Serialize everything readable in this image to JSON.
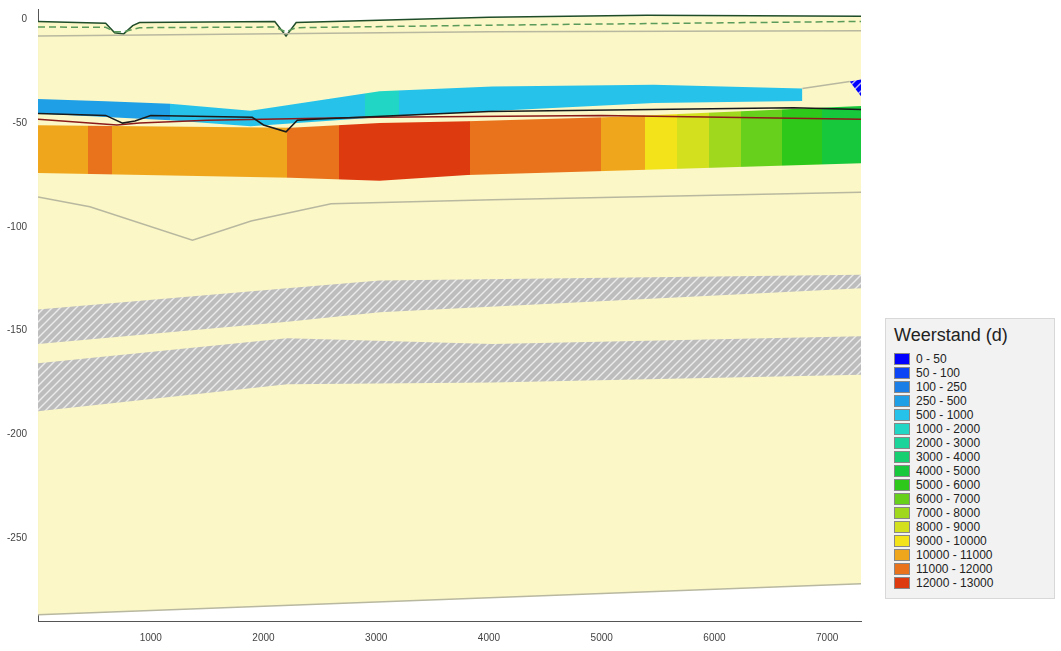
{
  "chart_data": {
    "type": "cross_section",
    "xlim": [
      0,
      7300
    ],
    "xticks": [
      1000,
      2000,
      3000,
      4000,
      5000,
      6000,
      7000
    ],
    "ylim": [
      -290,
      5
    ],
    "yticks": [
      -250,
      -200,
      -150,
      -100,
      -50,
      0
    ],
    "grid": false,
    "legend": "right",
    "legend_title": "Weerstand (d)",
    "legend_classes": [
      {
        "label": "0 - 50",
        "color": "#0000ff"
      },
      {
        "label": "50 - 100",
        "color": "#0a44f5"
      },
      {
        "label": "100 - 250",
        "color": "#1a7ee6"
      },
      {
        "label": "250 - 500",
        "color": "#1fa0e6"
      },
      {
        "label": "500 - 1000",
        "color": "#26c2ea"
      },
      {
        "label": "1000 - 2000",
        "color": "#22d6c6"
      },
      {
        "label": "2000 - 3000",
        "color": "#1ad49a"
      },
      {
        "label": "3000 - 4000",
        "color": "#16cf70"
      },
      {
        "label": "4000 - 5000",
        "color": "#18c83c"
      },
      {
        "label": "5000 - 6000",
        "color": "#2ec81a"
      },
      {
        "label": "6000 - 7000",
        "color": "#66d01c"
      },
      {
        "label": "7000 - 8000",
        "color": "#a0d81e"
      },
      {
        "label": "8000 - 9000",
        "color": "#d2e01e"
      },
      {
        "label": "9000 - 10000",
        "color": "#f2e31a"
      },
      {
        "label": "10000 - 11000",
        "color": "#f0a61c"
      },
      {
        "label": "11000 - 12000",
        "color": "#e8731c"
      },
      {
        "label": "12000 - 13000",
        "color": "#de3a10"
      }
    ],
    "layers": [
      {
        "x": [
          0,
          600,
          680,
          760,
          840,
          900,
          2100,
          2200,
          2290,
          4000,
          5400,
          7300
        ],
        "top": [
          -1,
          -1.9,
          -6.5,
          -7,
          -3,
          -1.5,
          -1,
          -8,
          -1.5,
          1,
          2,
          1.5
        ],
        "bottom": [
          -287,
          -285.8,
          -285.6,
          -285.4,
          -285.3,
          -285.2,
          -282.7,
          -282.5,
          -282.3,
          -278.8,
          -275.9,
          -272
        ],
        "color": "#fbf7c6"
      },
      {
        "x": [
          0,
          600,
          1170,
          1885,
          3030,
          4030,
          5460,
          6780
        ],
        "top": [
          -38.4,
          -39.5,
          -40.7,
          -44,
          -34.7,
          -32.4,
          -31.5,
          -33.3
        ],
        "bottom": [
          -45.4,
          -47,
          -48.6,
          -51.5,
          -47.2,
          -44.2,
          -40.3,
          -39.4
        ],
        "segments": [
          {
            "start": 0,
            "end": 1170,
            "color": "#1fa0e6"
          },
          {
            "start": 1170,
            "end": 2900,
            "color": "#26c2ea"
          },
          {
            "start": 2900,
            "end": 3200,
            "color": "#22d6c6"
          },
          {
            "start": 3200,
            "end": 6780,
            "color": "#26c2ea"
          }
        ]
      },
      {
        "x": [
          7200,
          7300
        ],
        "top": [
          -30,
          -29
        ],
        "bottom": [
          -30,
          -37
        ],
        "color": "#0000ff"
      },
      {
        "x": [
          0,
          2240,
          3030,
          3810,
          5030,
          7300
        ],
        "top": [
          -51,
          -52.3,
          -50,
          -49.1,
          -47.2,
          -41.7
        ],
        "bottom": [
          -74.1,
          -76.4,
          -77.8,
          -75,
          -73.1,
          -69.4
        ],
        "segments": [
          {
            "start": 0,
            "end": 440,
            "color": "#f0a61c"
          },
          {
            "start": 440,
            "end": 660,
            "color": "#e8731c"
          },
          {
            "start": 660,
            "end": 2210,
            "color": "#f0a61c"
          },
          {
            "start": 2210,
            "end": 2670,
            "color": "#e8731c"
          },
          {
            "start": 2670,
            "end": 3830,
            "color": "#de3a10"
          },
          {
            "start": 3830,
            "end": 4990,
            "color": "#e8731c"
          },
          {
            "start": 4990,
            "end": 5380,
            "color": "#f0a61c"
          },
          {
            "start": 5380,
            "end": 5670,
            "color": "#f2e31a"
          },
          {
            "start": 5670,
            "end": 5950,
            "color": "#d2e01e"
          },
          {
            "start": 5950,
            "end": 6240,
            "color": "#a0d81e"
          },
          {
            "start": 6240,
            "end": 6600,
            "color": "#66d01c"
          },
          {
            "start": 6600,
            "end": 6950,
            "color": "#2ec81a"
          },
          {
            "start": 6950,
            "end": 7300,
            "color": "#18c83c"
          }
        ]
      },
      {
        "x": [
          0,
          2210,
          3030,
          7300
        ],
        "top": [
          -139.8,
          -129.6,
          -125.9,
          -123.1
        ],
        "bottom": [
          -156.5,
          -145.8,
          -141.2,
          -129.6
        ],
        "color": "#bdbdbd"
      },
      {
        "x": [
          0,
          2210,
          4030,
          7300
        ],
        "top": [
          -165.7,
          -153.7,
          -156.5,
          -152.8
        ],
        "bottom": [
          -188.9,
          -175.9,
          -175,
          -171.3
        ],
        "color": "#bdbdbd"
      }
    ],
    "lines": [
      {
        "x": [
          0,
          600,
          680,
          760,
          840,
          900,
          2100,
          2200,
          2290,
          4000,
          5400,
          7300
        ],
        "values": [
          -1,
          -1.9,
          -6.5,
          -7,
          -3,
          -1.5,
          -1,
          -8,
          -1.5,
          1,
          2,
          1.5
        ],
        "color": "#1f4d2a",
        "line_style": "solid"
      },
      {
        "x": [
          0,
          600,
          680,
          760,
          900,
          2100,
          2200,
          2290,
          4000,
          7300
        ],
        "values": [
          -3.7,
          -3.8,
          -6,
          -6,
          -4,
          -3.7,
          -6,
          -4,
          -2.8,
          -1
        ],
        "color": "#5a9a5a",
        "line_style": "dashed"
      },
      {
        "x": [
          0,
          4000,
          7300
        ],
        "values": [
          -8,
          -6,
          -5.5
        ],
        "color": "#b8b8a0",
        "line_style": "solid"
      },
      {
        "x": [
          0,
          460,
          1370,
          1890,
          2600,
          4030,
          7300
        ],
        "values": [
          -85.6,
          -90.3,
          -106.5,
          -97.2,
          -88.9,
          -87,
          -83.3
        ],
        "color": "#b8b8a0",
        "line_style": "solid"
      },
      {
        "x": [
          0,
          7300
        ],
        "values": [
          -287,
          -272
        ],
        "color": "#b8b8a0",
        "line_style": "solid"
      },
      {
        "x": [
          6780,
          7200
        ],
        "values": [
          -33.3,
          -30
        ],
        "color": "#b8b8a0",
        "line_style": "solid"
      },
      {
        "x": [
          0,
          700,
          900,
          1500,
          3000,
          5000,
          7300
        ],
        "values": [
          -48.1,
          -50.9,
          -50,
          -48.6,
          -47.2,
          -46.3,
          -48.1
        ],
        "color": "#8b1a1a",
        "line_style": "solid"
      },
      {
        "x": [
          0,
          600,
          750,
          860,
          1000,
          1900,
          2000,
          2200,
          2300,
          2450,
          4000,
          6700,
          7300
        ],
        "values": [
          -45.4,
          -46.3,
          -50,
          -49,
          -46.3,
          -47.2,
          -50.9,
          -54.2,
          -48.6,
          -48.1,
          -44.4,
          -42.6,
          -43.5
        ],
        "color": "#1a1a1a",
        "line_style": "solid"
      }
    ]
  }
}
